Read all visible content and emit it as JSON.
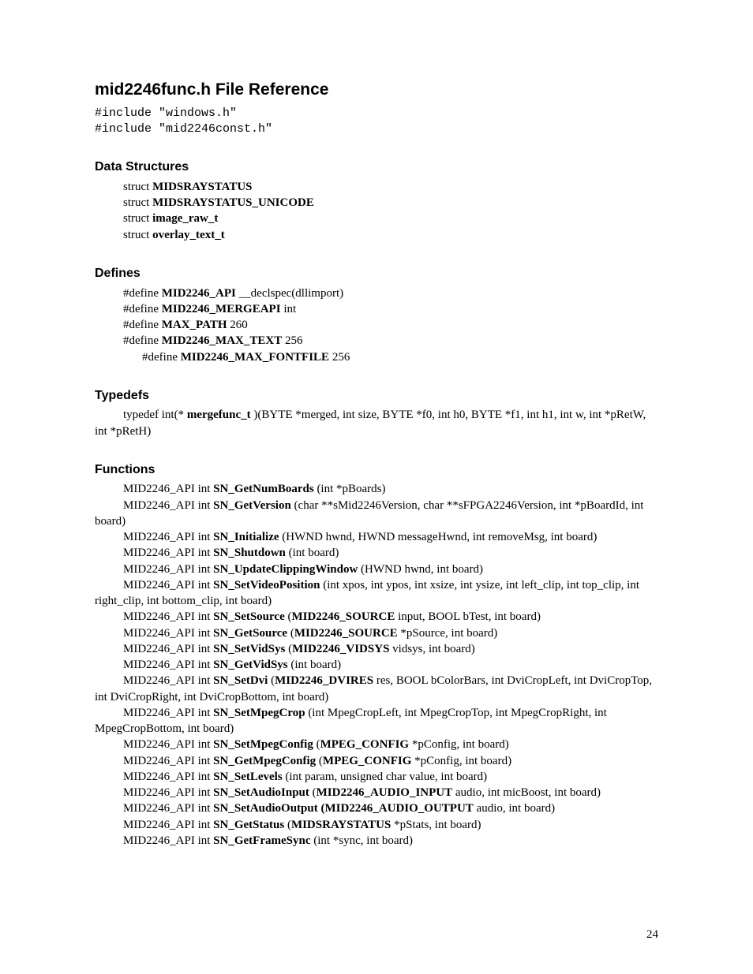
{
  "title": "mid2246func.h File Reference",
  "includes": [
    "#include \"windows.h\"",
    "#include \"mid2246const.h\""
  ],
  "sections": {
    "dataStructures": {
      "heading": "Data Structures",
      "items": [
        {
          "prefix": "struct ",
          "name": "MIDSRAYSTATUS",
          "suffix": ""
        },
        {
          "prefix": "struct ",
          "name": "MIDSRAYSTATUS_UNICODE",
          "suffix": ""
        },
        {
          "prefix": "struct ",
          "name": "image_raw_t",
          "suffix": ""
        },
        {
          "prefix": "struct ",
          "name": "overlay_text_t",
          "suffix": ""
        }
      ]
    },
    "defines": {
      "heading": "Defines",
      "items": [
        {
          "prefix": "#define ",
          "name": "MID2246_API",
          "suffix": "   __declspec(dllimport)",
          "sub": false
        },
        {
          "prefix": "#define ",
          "name": "MID2246_MERGEAPI",
          "suffix": "   int",
          "sub": false
        },
        {
          "prefix": "#define ",
          "name": "MAX_PATH",
          "suffix": "   260",
          "sub": false
        },
        {
          "prefix": "#define ",
          "name": "MID2246_MAX_TEXT",
          "suffix": "   256",
          "sub": false
        },
        {
          "prefix": "#define ",
          "name": "MID2246_MAX_FONTFILE",
          "suffix": "   256",
          "sub": true
        }
      ]
    },
    "typedefs": {
      "heading": "Typedefs",
      "text": {
        "pre": "typedef int(* ",
        "bold": "mergefunc_t",
        "post": " )(BYTE *merged, int size, BYTE *f0, int h0, BYTE *f1, int h1, int w, int *pRetW, int *pRetH)"
      }
    },
    "functions": {
      "heading": "Functions"
    }
  },
  "pageNumber": "24"
}
